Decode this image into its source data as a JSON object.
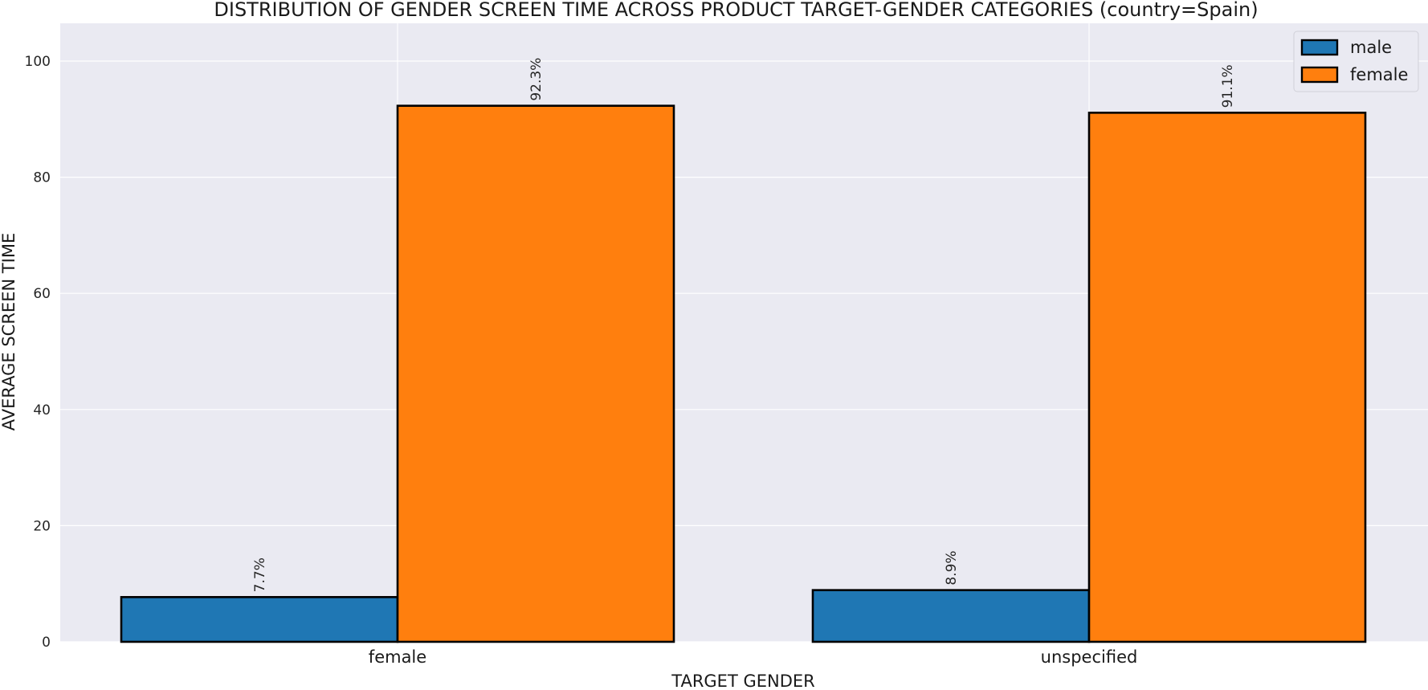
{
  "chart_data": {
    "type": "bar",
    "title": "DISTRIBUTION OF GENDER SCREEN TIME ACROSS PRODUCT TARGET-GENDER CATEGORIES (country=Spain)",
    "xlabel": "TARGET GENDER",
    "ylabel": "AVERAGE SCREEN TIME",
    "categories": [
      "female",
      "unspecified"
    ],
    "series": [
      {
        "name": "male",
        "color": "#1f77b4",
        "values": [
          7.7,
          8.9
        ],
        "labels": [
          "7.7%",
          "8.9%"
        ]
      },
      {
        "name": "female",
        "color": "#ff7f0e",
        "values": [
          92.3,
          91.1
        ],
        "labels": [
          "92.3%",
          "91.1%"
        ]
      }
    ],
    "ylim": [
      0,
      106.5
    ],
    "yticks": [
      0,
      20,
      40,
      60,
      80,
      100
    ],
    "grid": true,
    "legend": "top-right",
    "background": "#eaeaf2",
    "bar_edge_color": "#000000"
  }
}
